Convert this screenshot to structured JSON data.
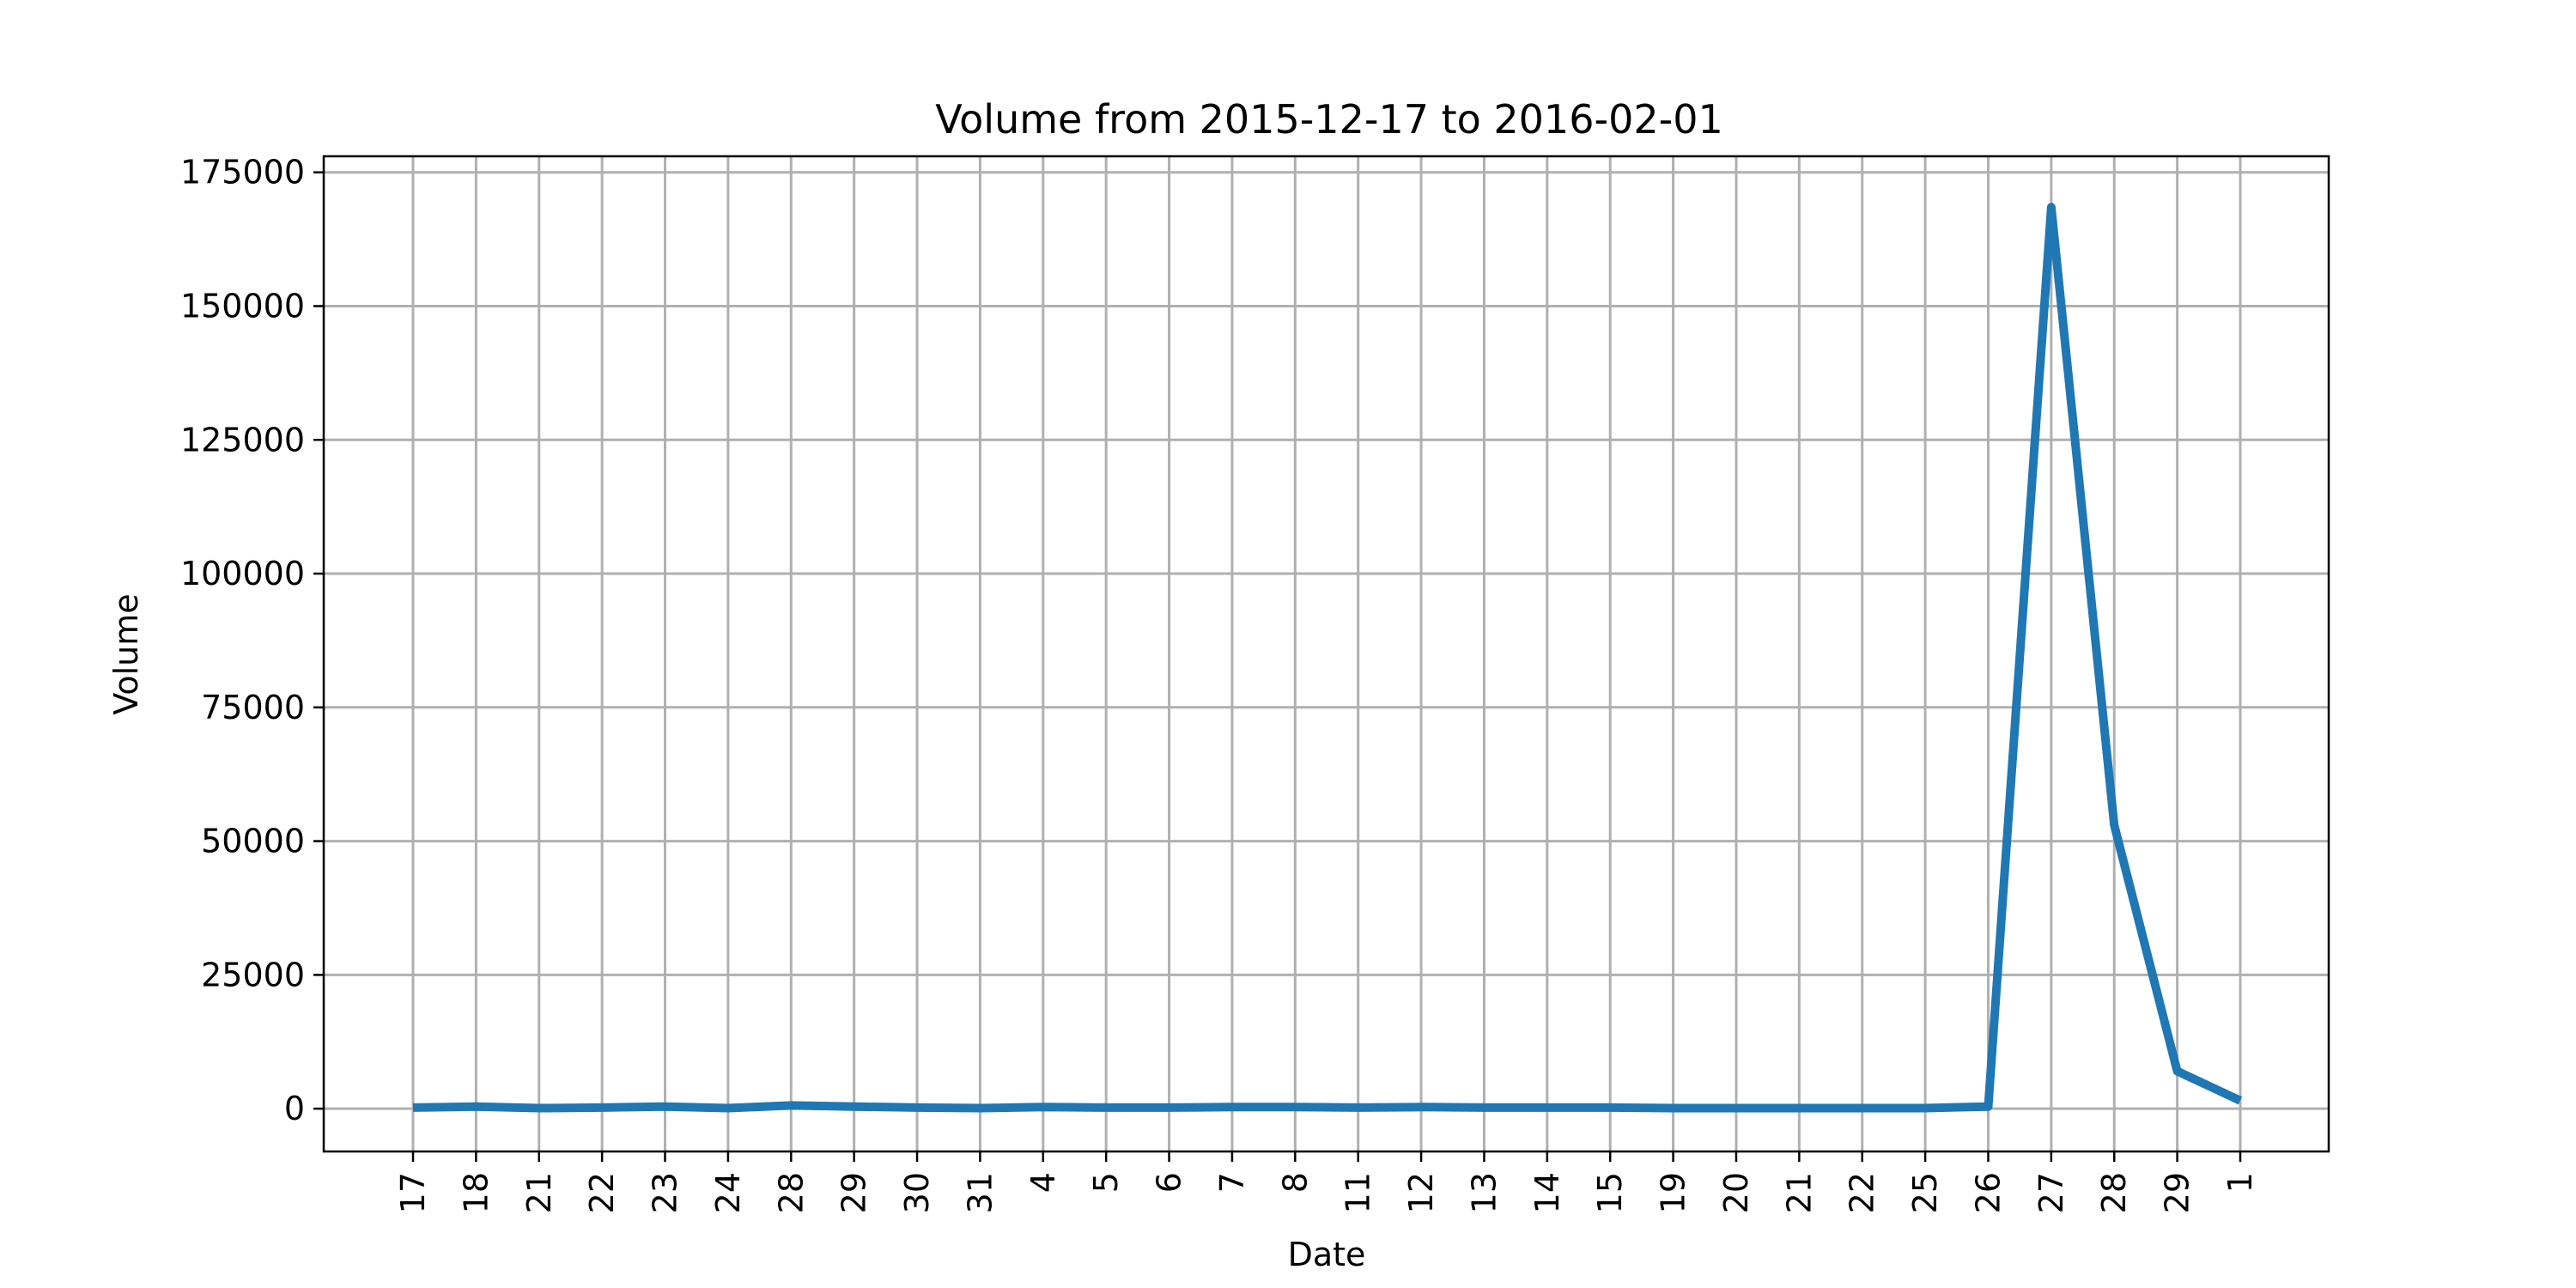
{
  "chart_data": {
    "type": "line",
    "title": "Volume from 2015-12-17 to 2016-02-01",
    "xlabel": "Date",
    "ylabel": "Volume",
    "x": [
      "2015-12-17",
      "2015-12-18",
      "2015-12-21",
      "2015-12-22",
      "2015-12-23",
      "2015-12-24",
      "2015-12-28",
      "2015-12-29",
      "2015-12-30",
      "2015-12-31",
      "2016-01-04",
      "2016-01-05",
      "2016-01-06",
      "2016-01-07",
      "2016-01-08",
      "2016-01-11",
      "2016-01-12",
      "2016-01-13",
      "2016-01-14",
      "2016-01-15",
      "2016-01-19",
      "2016-01-20",
      "2016-01-21",
      "2016-01-22",
      "2016-01-25",
      "2016-01-26",
      "2016-01-27",
      "2016-01-28",
      "2016-01-29",
      "2016-02-01"
    ],
    "x_tick_labels": [
      "17",
      "18",
      "21",
      "22",
      "23",
      "24",
      "28",
      "29",
      "30",
      "31",
      "4",
      "5",
      "6",
      "7",
      "8",
      "11",
      "12",
      "13",
      "14",
      "15",
      "19",
      "20",
      "21",
      "22",
      "25",
      "26",
      "27",
      "28",
      "29",
      "1"
    ],
    "series": [
      {
        "values": [
          200,
          400,
          100,
          200,
          400,
          100,
          600,
          400,
          200,
          100,
          300,
          200,
          200,
          300,
          300,
          200,
          300,
          200,
          200,
          200,
          100,
          100,
          100,
          100,
          100,
          400,
          168500,
          53000,
          7000,
          1500
        ]
      }
    ],
    "ylim": [
      -8000,
      178000
    ],
    "y_ticks": [
      0,
      25000,
      50000,
      75000,
      100000,
      125000,
      150000,
      175000
    ],
    "grid": true,
    "legend": "none",
    "colors": {
      "line": "#1f77b4"
    }
  }
}
